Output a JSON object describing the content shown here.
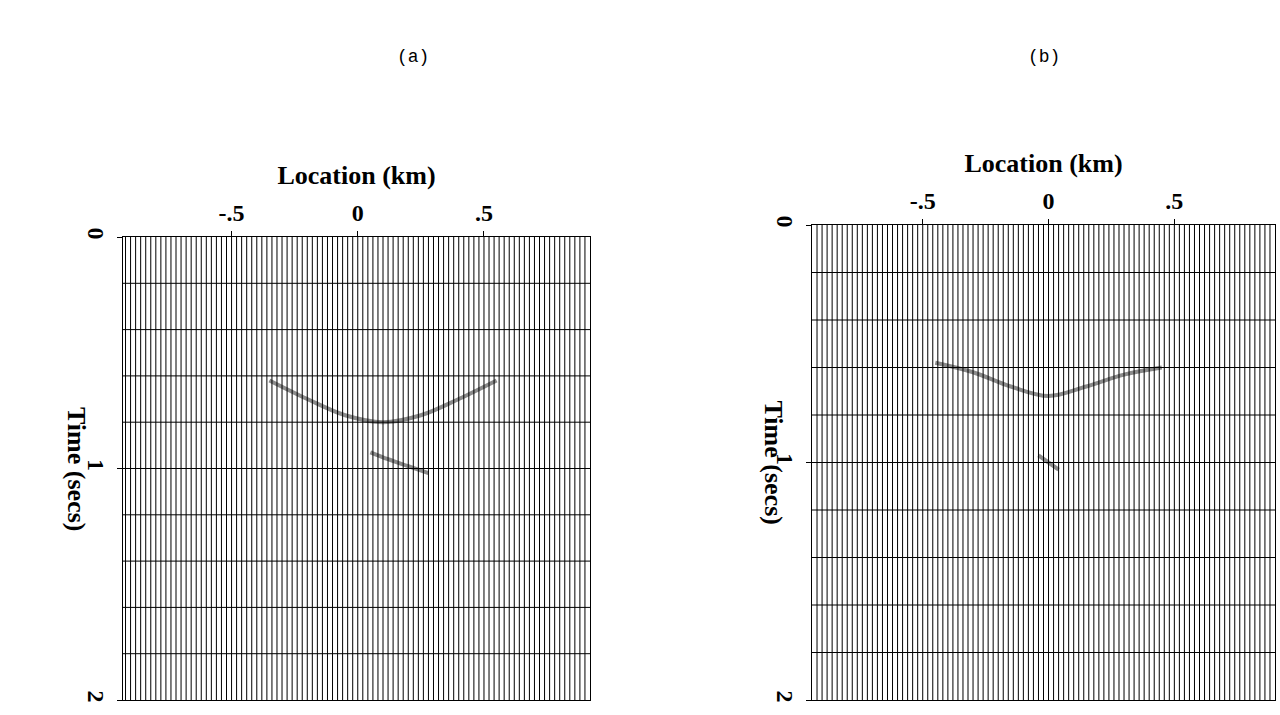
{
  "chart_data": [
    {
      "type": "wiggle",
      "title": "(a)",
      "xlabel": "Location (km)",
      "ylabel": "Time (secs)",
      "xlim": [
        -0.93,
        0.92
      ],
      "ylim": [
        0,
        2
      ],
      "xticks": [
        {
          "value": -0.5,
          "label": "-.5"
        },
        0,
        {
          "value": 0.5,
          "label": ".5"
        }
      ],
      "yticks": [
        0,
        1,
        2
      ],
      "timing_lines": [
        0.2,
        0.4,
        0.6,
        0.8,
        1.0,
        1.2,
        1.4,
        1.6,
        1.8
      ],
      "trace_locations": [
        -0.92,
        -0.9,
        -0.88,
        -0.86,
        -0.84,
        -0.82,
        -0.8,
        -0.78,
        -0.76,
        -0.74,
        -0.72,
        -0.7,
        -0.68,
        -0.66,
        -0.64,
        -0.62,
        -0.6,
        -0.58,
        -0.56,
        -0.54,
        -0.52,
        -0.5,
        -0.48,
        -0.46,
        -0.44,
        -0.42,
        -0.4,
        -0.38,
        -0.36,
        -0.34,
        -0.32,
        -0.3,
        -0.28,
        -0.26,
        -0.24,
        -0.22,
        -0.2,
        -0.18,
        -0.16,
        -0.14,
        -0.12,
        -0.1,
        -0.08,
        -0.06,
        -0.04,
        -0.02,
        0,
        0.02,
        0.04,
        0.06,
        0.08,
        0.1,
        0.12,
        0.14,
        0.16,
        0.18,
        0.2,
        0.22,
        0.24,
        0.26,
        0.28,
        0.3,
        0.32,
        0.34,
        0.36,
        0.38,
        0.4,
        0.42,
        0.44,
        0.46,
        0.48,
        0.5,
        0.52,
        0.54,
        0.56,
        0.58,
        0.6,
        0.62,
        0.64,
        0.66,
        0.68,
        0.7,
        0.72,
        0.74,
        0.76,
        0.78,
        0.8,
        0.82,
        0.84,
        0.86,
        0.88,
        0.9
      ],
      "events": [
        {
          "x": [
            -0.35,
            -0.2,
            -0.05,
            0.1,
            0.25,
            0.4,
            0.55
          ],
          "time": [
            0.62,
            0.7,
            0.77,
            0.8,
            0.77,
            0.7,
            0.62
          ]
        },
        {
          "x": [
            0.05,
            0.12,
            0.2,
            0.28
          ],
          "time": [
            0.93,
            0.96,
            0.99,
            1.02
          ]
        }
      ],
      "color": "#000000",
      "grid": false
    },
    {
      "type": "wiggle",
      "title": "(b)",
      "xlabel": "Location (km)",
      "ylabel": "Time (secs)",
      "xlim": [
        -0.94,
        0.9
      ],
      "ylim": [
        0,
        2
      ],
      "xticks": [
        {
          "value": -0.5,
          "label": "-.5"
        },
        0,
        {
          "value": 0.5,
          "label": ".5"
        }
      ],
      "yticks": [
        0,
        1,
        2
      ],
      "timing_lines": [
        0.2,
        0.4,
        0.6,
        0.8,
        1.0,
        1.2,
        1.4,
        1.6,
        1.8
      ],
      "trace_locations": [
        -0.92,
        -0.9,
        -0.88,
        -0.86,
        -0.84,
        -0.82,
        -0.8,
        -0.78,
        -0.76,
        -0.74,
        -0.72,
        -0.7,
        -0.68,
        -0.66,
        -0.64,
        -0.62,
        -0.6,
        -0.58,
        -0.56,
        -0.54,
        -0.52,
        -0.5,
        -0.48,
        -0.46,
        -0.44,
        -0.42,
        -0.4,
        -0.38,
        -0.36,
        -0.34,
        -0.32,
        -0.3,
        -0.28,
        -0.26,
        -0.24,
        -0.22,
        -0.2,
        -0.18,
        -0.16,
        -0.14,
        -0.12,
        -0.1,
        -0.08,
        -0.06,
        -0.04,
        -0.02,
        0,
        0.02,
        0.04,
        0.06,
        0.08,
        0.1,
        0.12,
        0.14,
        0.16,
        0.18,
        0.2,
        0.22,
        0.24,
        0.26,
        0.28,
        0.3,
        0.32,
        0.34,
        0.36,
        0.38,
        0.4,
        0.42,
        0.44,
        0.46,
        0.48,
        0.5,
        0.52,
        0.54,
        0.56,
        0.58,
        0.6,
        0.62,
        0.64,
        0.66,
        0.68,
        0.7,
        0.72,
        0.74,
        0.76,
        0.78,
        0.8,
        0.82,
        0.84,
        0.86,
        0.88
      ],
      "events": [
        {
          "x": [
            -0.45,
            -0.3,
            -0.15,
            0,
            0.15,
            0.3,
            0.45
          ],
          "time": [
            0.58,
            0.62,
            0.68,
            0.72,
            0.68,
            0.63,
            0.6
          ]
        },
        {
          "x": [
            -0.04,
            0,
            0.04
          ],
          "time": [
            0.97,
            1.0,
            1.03
          ]
        }
      ],
      "color": "#000000",
      "grid": false
    }
  ]
}
